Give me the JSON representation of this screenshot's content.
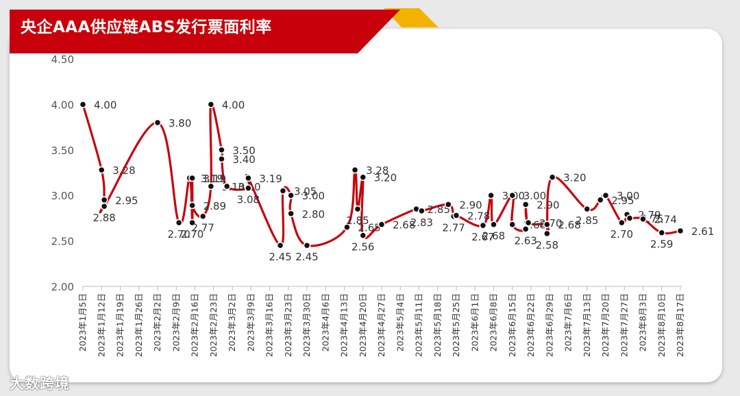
{
  "watermark": "大数跨境",
  "colors": {
    "title_bg": "#c8000b",
    "title_accent": "#f2b300",
    "line": "#c8000b",
    "point": "#111111"
  },
  "chart_data": {
    "type": "line",
    "title": "央企AAA供应链ABS发行票面利率",
    "xlabel": "",
    "ylabel": "",
    "ylim": [
      2.0,
      4.5
    ],
    "yticks": [
      "2.00",
      "2.50",
      "3.00",
      "3.50",
      "4.00",
      "4.50"
    ],
    "x_range": [
      "2023-01-05",
      "2023-08-17"
    ],
    "categories": [
      "2023年1月5日",
      "2023年1月12日",
      "2023年1月19日",
      "2023年1月26日",
      "2023年2月2日",
      "2023年2月9日",
      "2023年2月16日",
      "2023年2月23日",
      "2023年3月2日",
      "2023年3月9日",
      "2023年3月16日",
      "2023年3月23日",
      "2023年3月30日",
      "2023年4月6日",
      "2023年4月13日",
      "2023年4月20日",
      "2023年4月27日",
      "2023年5月4日",
      "2023年5月11日",
      "2023年5月18日",
      "2023年5月25日",
      "2023年6月1日",
      "2023年6月8日",
      "2023年6月15日",
      "2023年6月22日",
      "2023年6月29日",
      "2023年7月6日",
      "2023年7月13日",
      "2023年7月20日",
      "2023年7月27日",
      "2023年8月3日",
      "2023年8月10日",
      "2023年8月17日"
    ],
    "grid": false,
    "series": [
      {
        "points": [
          {
            "x": "2023-01-05",
            "y": 4.0,
            "label": "4.00"
          },
          {
            "x": "2023-01-12",
            "y": 3.28,
            "label": "3.28"
          },
          {
            "x": "2023-01-13",
            "y": 2.95,
            "label": "2.95"
          },
          {
            "x": "2023-01-13",
            "y": 2.88,
            "label": "2.88"
          },
          {
            "x": "2023-02-02",
            "y": 3.8,
            "label": "3.80"
          },
          {
            "x": "2023-02-10",
            "y": 2.7,
            "label": "2.70"
          },
          {
            "x": "2023-02-14",
            "y": 3.19,
            "label": "3.19"
          },
          {
            "x": "2023-02-15",
            "y": 2.7,
            "label": "2.70"
          },
          {
            "x": "2023-02-15",
            "y": 3.19,
            "label": "3.19"
          },
          {
            "x": "2023-02-15",
            "y": 2.89,
            "label": "2.89"
          },
          {
            "x": "2023-02-19",
            "y": 2.77,
            "label": "2.77"
          },
          {
            "x": "2023-02-22",
            "y": 3.1,
            "label": "3.10"
          },
          {
            "x": "2023-02-22",
            "y": 4.0,
            "label": "4.00"
          },
          {
            "x": "2023-02-26",
            "y": 3.5,
            "label": "3.50"
          },
          {
            "x": "2023-02-26",
            "y": 3.4,
            "label": "3.40"
          },
          {
            "x": "2023-02-28",
            "y": 3.1,
            "label": "3.10"
          },
          {
            "x": "2023-03-08",
            "y": 3.08,
            "label": "3.08"
          },
          {
            "x": "2023-03-08",
            "y": 3.19,
            "label": "3.19"
          },
          {
            "x": "2023-03-20",
            "y": 2.45,
            "label": "2.45"
          },
          {
            "x": "2023-03-21",
            "y": 3.05,
            "label": "3.05"
          },
          {
            "x": "2023-03-24",
            "y": 3.0,
            "label": "3.00"
          },
          {
            "x": "2023-03-24",
            "y": 2.8,
            "label": "2.80"
          },
          {
            "x": "2023-03-30",
            "y": 2.45,
            "label": "2.45"
          },
          {
            "x": "2023-04-14",
            "y": 2.65,
            "label": "2.65"
          },
          {
            "x": "2023-04-17",
            "y": 3.28,
            "label": "3.28"
          },
          {
            "x": "2023-04-18",
            "y": 2.85,
            "label": "2.85"
          },
          {
            "x": "2023-04-20",
            "y": 3.2,
            "label": "3.20"
          },
          {
            "x": "2023-04-20",
            "y": 2.56,
            "label": "2.56"
          },
          {
            "x": "2023-04-27",
            "y": 2.68,
            "label": "2.68"
          },
          {
            "x": "2023-05-10",
            "y": 2.85,
            "label": "2.85"
          },
          {
            "x": "2023-05-12",
            "y": 2.83,
            "label": "2.83"
          },
          {
            "x": "2023-05-22",
            "y": 2.9,
            "label": "2.90"
          },
          {
            "x": "2023-05-24",
            "y": 2.77,
            "label": "2.77"
          },
          {
            "x": "2023-05-25",
            "y": 2.78,
            "label": "2.78"
          },
          {
            "x": "2023-06-04",
            "y": 2.67,
            "label": "2.67"
          },
          {
            "x": "2023-06-07",
            "y": 3.0,
            "label": "3.00"
          },
          {
            "x": "2023-06-08",
            "y": 2.68,
            "label": "2.68"
          },
          {
            "x": "2023-06-15",
            "y": 3.0,
            "label": "3.00"
          },
          {
            "x": "2023-06-15",
            "y": 2.68,
            "label": "2.68"
          },
          {
            "x": "2023-06-20",
            "y": 2.63,
            "label": "2.63"
          },
          {
            "x": "2023-06-20",
            "y": 2.9,
            "label": "2.90"
          },
          {
            "x": "2023-06-21",
            "y": 2.7,
            "label": "2.70"
          },
          {
            "x": "2023-06-28",
            "y": 2.68,
            "label": "2.68"
          },
          {
            "x": "2023-06-28",
            "y": 2.58,
            "label": "2.58"
          },
          {
            "x": "2023-06-30",
            "y": 3.2,
            "label": "3.20"
          },
          {
            "x": "2023-07-13",
            "y": 2.85,
            "label": "2.85"
          },
          {
            "x": "2023-07-18",
            "y": 2.95,
            "label": "2.95"
          },
          {
            "x": "2023-07-20",
            "y": 3.0,
            "label": "3.00"
          },
          {
            "x": "2023-07-26",
            "y": 2.7,
            "label": "2.70"
          },
          {
            "x": "2023-07-28",
            "y": 2.79,
            "label": "2.79"
          },
          {
            "x": "2023-07-29",
            "y": 2.75,
            "label": "2.75"
          },
          {
            "x": "2023-08-03",
            "y": 2.74,
            "label": "2.74"
          },
          {
            "x": "2023-08-10",
            "y": 2.59,
            "label": "2.59"
          },
          {
            "x": "2023-08-17",
            "y": 2.61,
            "label": "2.61"
          }
        ]
      }
    ]
  }
}
